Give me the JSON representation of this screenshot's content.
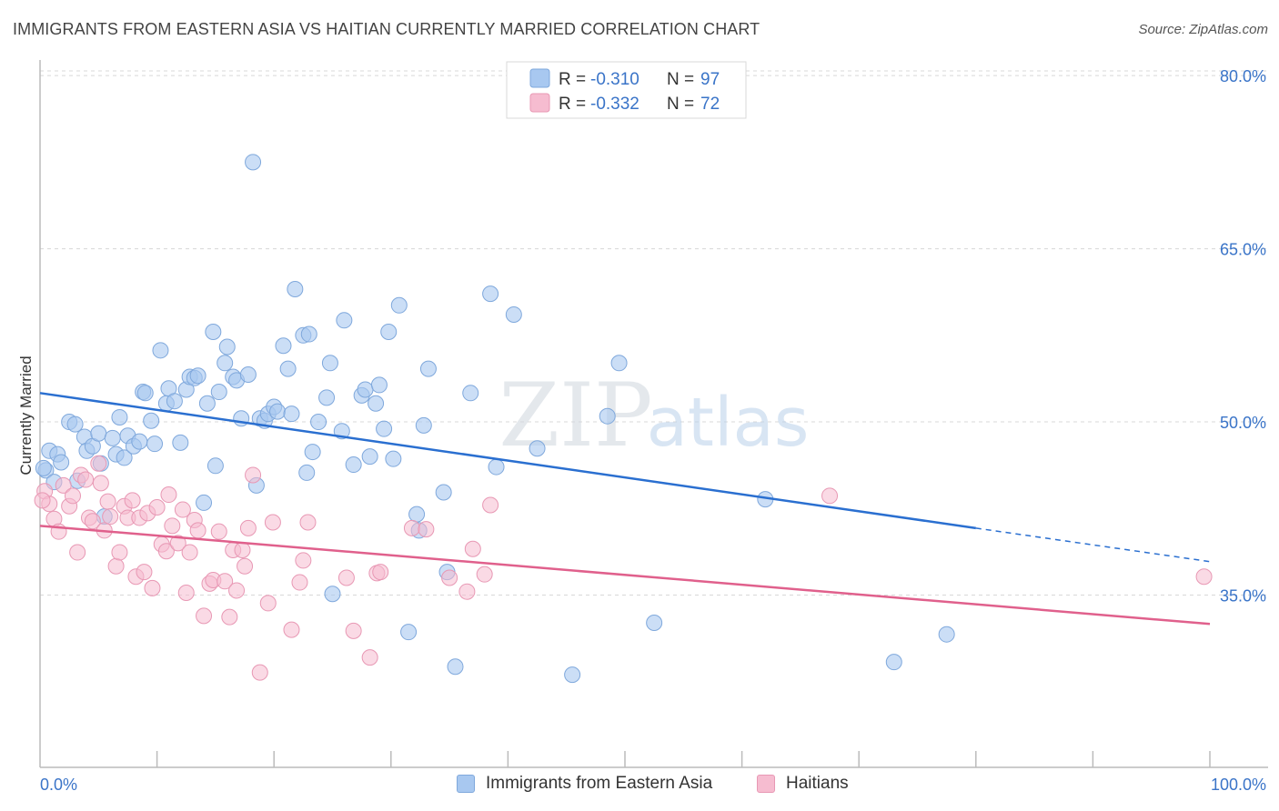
{
  "title": "IMMIGRANTS FROM EASTERN ASIA VS HAITIAN CURRENTLY MARRIED CORRELATION CHART",
  "source": "Source: ZipAtlas.com",
  "watermark": {
    "zip": "ZIP",
    "atlas": "atlas"
  },
  "colors": {
    "blue_fill": "#a8c8f0",
    "blue_stroke": "#7fa8dc",
    "blue_line": "#2a6fd0",
    "pink_fill": "#f6bcd0",
    "pink_stroke": "#e898b4",
    "pink_line": "#e0608c",
    "axis_text": "#3a74c8",
    "grid": "#d8d8d8"
  },
  "legend_top": [
    {
      "r_label": "R = ",
      "r_value": "-0.310",
      "n_label": "N = ",
      "n_value": "97"
    },
    {
      "r_label": "R = ",
      "r_value": "-0.332",
      "n_label": "N = ",
      "n_value": "72"
    }
  ],
  "legend_bottom": [
    "Immigrants from Eastern Asia",
    "Haitians"
  ],
  "chart_data": {
    "type": "scatter",
    "title": "IMMIGRANTS FROM EASTERN ASIA VS HAITIAN CURRENTLY MARRIED CORRELATION CHART",
    "xlabel": "",
    "ylabel": "Currently Married",
    "xlim": [
      0,
      100
    ],
    "ylim": [
      20,
      83
    ],
    "x_tick_labels": [
      "0.0%",
      "100.0%"
    ],
    "y_ticks": [
      35,
      50,
      65,
      80
    ],
    "y_tick_labels": [
      "35.0%",
      "50.0%",
      "65.0%",
      "80.0%"
    ],
    "grid": true,
    "legend_position": "top-center",
    "series": [
      {
        "name": "Immigrants from Eastern Asia",
        "r": -0.31,
        "n": 97,
        "trend": {
          "x0": 0,
          "y0": 52.5,
          "x1": 80,
          "y1": 40.8,
          "dash_to_x": 100,
          "dash_to_y": 37.9
        },
        "points": [
          [
            0.5,
            45.8
          ],
          [
            0.8,
            47.5
          ],
          [
            1.2,
            44.8
          ],
          [
            1.5,
            47.2
          ],
          [
            1.8,
            46.5
          ],
          [
            2.5,
            50.0
          ],
          [
            3.0,
            49.8
          ],
          [
            3.2,
            44.9
          ],
          [
            3.8,
            48.7
          ],
          [
            4.0,
            47.5
          ],
          [
            4.5,
            47.9
          ],
          [
            5.0,
            49.0
          ],
          [
            5.2,
            46.4
          ],
          [
            5.5,
            41.8
          ],
          [
            6.2,
            48.6
          ],
          [
            6.5,
            47.2
          ],
          [
            6.8,
            50.4
          ],
          [
            7.2,
            46.9
          ],
          [
            7.5,
            48.8
          ],
          [
            8.0,
            47.9
          ],
          [
            8.5,
            48.3
          ],
          [
            8.8,
            52.6
          ],
          [
            9.0,
            52.5
          ],
          [
            9.5,
            50.1
          ],
          [
            9.8,
            48.1
          ],
          [
            10.3,
            56.2
          ],
          [
            10.8,
            51.6
          ],
          [
            11.0,
            52.9
          ],
          [
            11.5,
            51.8
          ],
          [
            12.0,
            48.2
          ],
          [
            12.5,
            52.8
          ],
          [
            12.8,
            53.9
          ],
          [
            13.2,
            53.8
          ],
          [
            13.5,
            54.0
          ],
          [
            14.0,
            43.0
          ],
          [
            14.3,
            51.6
          ],
          [
            14.8,
            57.8
          ],
          [
            15.0,
            46.2
          ],
          [
            15.3,
            52.6
          ],
          [
            15.8,
            55.1
          ],
          [
            16.0,
            56.5
          ],
          [
            16.5,
            53.9
          ],
          [
            16.8,
            53.6
          ],
          [
            17.2,
            50.3
          ],
          [
            17.8,
            54.1
          ],
          [
            18.2,
            72.5
          ],
          [
            18.5,
            44.5
          ],
          [
            18.8,
            50.3
          ],
          [
            19.2,
            50.1
          ],
          [
            19.5,
            50.7
          ],
          [
            20.0,
            51.3
          ],
          [
            20.3,
            50.9
          ],
          [
            20.8,
            56.6
          ],
          [
            21.2,
            54.6
          ],
          [
            21.5,
            50.7
          ],
          [
            21.8,
            61.5
          ],
          [
            22.5,
            57.5
          ],
          [
            22.8,
            45.6
          ],
          [
            23.0,
            57.6
          ],
          [
            23.3,
            47.4
          ],
          [
            23.8,
            50.0
          ],
          [
            24.5,
            52.1
          ],
          [
            24.8,
            55.1
          ],
          [
            25.8,
            49.2
          ],
          [
            26.0,
            58.8
          ],
          [
            26.8,
            46.3
          ],
          [
            27.5,
            52.3
          ],
          [
            27.8,
            52.8
          ],
          [
            28.2,
            47.0
          ],
          [
            28.7,
            51.6
          ],
          [
            29.0,
            53.2
          ],
          [
            29.4,
            49.4
          ],
          [
            29.8,
            57.8
          ],
          [
            30.2,
            46.8
          ],
          [
            30.7,
            60.1
          ],
          [
            31.5,
            31.8
          ],
          [
            32.2,
            42.0
          ],
          [
            32.4,
            40.6
          ],
          [
            32.8,
            49.7
          ],
          [
            33.2,
            54.6
          ],
          [
            34.5,
            43.9
          ],
          [
            34.8,
            37.0
          ],
          [
            35.5,
            28.8
          ],
          [
            36.8,
            52.5
          ],
          [
            38.5,
            61.1
          ],
          [
            39.0,
            46.1
          ],
          [
            40.5,
            59.3
          ],
          [
            42.5,
            47.7
          ],
          [
            45.5,
            28.1
          ],
          [
            48.5,
            50.5
          ],
          [
            49.5,
            55.1
          ],
          [
            52.5,
            32.6
          ],
          [
            62.0,
            43.3
          ],
          [
            73.0,
            29.2
          ],
          [
            77.5,
            31.6
          ],
          [
            25.0,
            35.1
          ],
          [
            0.3,
            46.0
          ]
        ]
      },
      {
        "name": "Haitians",
        "r": -0.332,
        "n": 72,
        "trend": {
          "x0": 0,
          "y0": 41.0,
          "x1": 100,
          "y1": 32.5
        },
        "points": [
          [
            0.4,
            44.0
          ],
          [
            0.8,
            42.9
          ],
          [
            1.2,
            41.6
          ],
          [
            1.6,
            40.5
          ],
          [
            2.0,
            44.5
          ],
          [
            2.5,
            42.7
          ],
          [
            2.8,
            43.6
          ],
          [
            3.2,
            38.7
          ],
          [
            3.5,
            45.4
          ],
          [
            3.9,
            45.0
          ],
          [
            4.2,
            41.7
          ],
          [
            4.5,
            41.4
          ],
          [
            5.0,
            46.4
          ],
          [
            5.2,
            44.7
          ],
          [
            5.5,
            40.6
          ],
          [
            5.8,
            43.1
          ],
          [
            6.0,
            41.8
          ],
          [
            6.5,
            37.5
          ],
          [
            6.8,
            38.7
          ],
          [
            7.2,
            42.7
          ],
          [
            7.5,
            41.7
          ],
          [
            7.9,
            43.2
          ],
          [
            8.2,
            36.6
          ],
          [
            8.5,
            41.7
          ],
          [
            8.9,
            37.0
          ],
          [
            9.2,
            42.1
          ],
          [
            9.6,
            35.6
          ],
          [
            10.0,
            42.6
          ],
          [
            10.4,
            39.4
          ],
          [
            10.8,
            38.8
          ],
          [
            11.0,
            43.7
          ],
          [
            11.3,
            41.0
          ],
          [
            11.8,
            39.5
          ],
          [
            12.2,
            42.4
          ],
          [
            12.5,
            35.2
          ],
          [
            12.8,
            38.7
          ],
          [
            13.2,
            41.5
          ],
          [
            13.5,
            40.6
          ],
          [
            14.0,
            33.2
          ],
          [
            14.5,
            36.0
          ],
          [
            14.8,
            36.3
          ],
          [
            15.3,
            40.5
          ],
          [
            15.8,
            36.2
          ],
          [
            16.2,
            33.1
          ],
          [
            16.5,
            38.9
          ],
          [
            16.8,
            35.4
          ],
          [
            17.3,
            38.9
          ],
          [
            17.5,
            37.5
          ],
          [
            17.8,
            40.8
          ],
          [
            18.2,
            45.4
          ],
          [
            18.8,
            28.3
          ],
          [
            19.5,
            34.3
          ],
          [
            19.9,
            41.3
          ],
          [
            21.5,
            32.0
          ],
          [
            22.2,
            36.1
          ],
          [
            22.5,
            38.0
          ],
          [
            22.9,
            41.3
          ],
          [
            26.2,
            36.5
          ],
          [
            26.8,
            31.9
          ],
          [
            28.2,
            29.6
          ],
          [
            28.8,
            36.9
          ],
          [
            29.1,
            37.0
          ],
          [
            31.8,
            40.8
          ],
          [
            33.0,
            40.7
          ],
          [
            35.0,
            36.5
          ],
          [
            36.5,
            35.3
          ],
          [
            37.0,
            39.0
          ],
          [
            38.0,
            36.8
          ],
          [
            38.5,
            42.8
          ],
          [
            67.5,
            43.6
          ],
          [
            99.5,
            36.6
          ],
          [
            0.2,
            43.2
          ]
        ]
      }
    ]
  }
}
